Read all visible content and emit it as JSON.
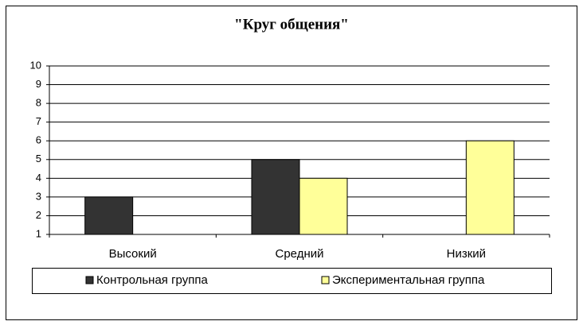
{
  "chart_data": {
    "type": "bar",
    "title": "\"Круг общения\"",
    "categories": [
      "Высокий",
      "Средний",
      "Низкий"
    ],
    "series": [
      {
        "name": "Контрольная группа",
        "color": "#333333",
        "values": [
          3,
          5,
          1
        ]
      },
      {
        "name": "Экспериментальная группа",
        "color": "#ffff99",
        "values": [
          1,
          4,
          6
        ]
      }
    ],
    "ylim": [
      1,
      10
    ],
    "yticks": [
      1,
      2,
      3,
      4,
      5,
      6,
      7,
      8,
      9,
      10
    ],
    "grid": true,
    "legend": "bottom"
  }
}
